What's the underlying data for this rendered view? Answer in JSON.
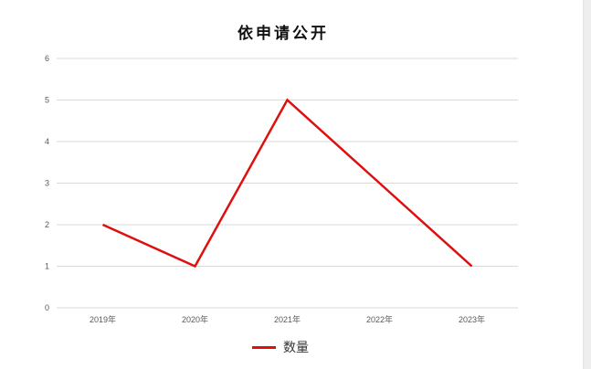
{
  "chart_data": {
    "type": "line",
    "title": "依申请公开",
    "categories": [
      "2019年",
      "2020年",
      "2021年",
      "2022年",
      "2023年"
    ],
    "series": [
      {
        "name": "数量",
        "values": [
          2,
          1,
          5,
          3,
          1
        ],
        "color": "#e00f0f"
      }
    ],
    "ylim": [
      0,
      6
    ],
    "yticks": [
      0,
      1,
      2,
      3,
      4,
      5,
      6
    ],
    "xlabel": "",
    "ylabel": "",
    "grid": true,
    "legend": "bottom"
  }
}
